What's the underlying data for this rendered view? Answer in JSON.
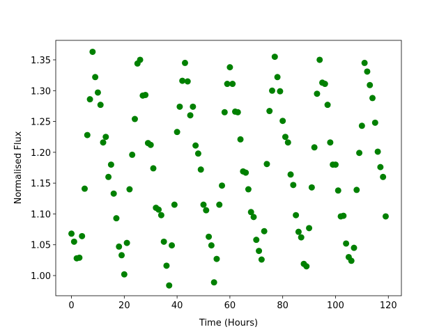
{
  "chart_data": {
    "type": "scatter",
    "x_label": "Time (Hours)",
    "y_label": "Normalised Flux",
    "color": "#008000",
    "x": [
      0,
      1,
      2,
      3,
      4,
      5,
      6,
      7,
      8,
      9,
      10,
      11,
      12,
      13,
      14,
      15,
      16,
      17,
      18,
      19,
      20,
      21,
      22,
      23,
      24,
      25,
      26,
      27,
      28,
      29,
      30,
      31,
      32,
      33,
      34,
      35,
      36,
      37,
      38,
      39,
      40,
      41,
      42,
      43,
      44,
      45,
      46,
      47,
      48,
      49,
      50,
      51,
      52,
      53,
      54,
      55,
      56,
      57,
      58,
      59,
      60,
      61,
      62,
      63,
      64,
      65,
      66,
      67,
      68,
      69,
      70,
      71,
      72,
      73,
      74,
      75,
      76,
      77,
      78,
      79,
      80,
      81,
      82,
      83,
      84,
      85,
      86,
      87,
      88,
      89,
      90,
      91,
      92,
      93,
      94,
      95,
      96,
      97,
      98,
      99,
      100,
      101,
      102,
      103,
      104,
      105,
      106,
      107,
      108,
      109,
      110,
      111,
      112,
      113,
      114,
      115,
      116,
      117,
      118,
      119
    ],
    "values": [
      1.068,
      1.055,
      1.028,
      1.029,
      1.064,
      1.141,
      1.228,
      1.286,
      1.363,
      1.322,
      1.297,
      1.277,
      1.216,
      1.225,
      1.16,
      1.18,
      1.133,
      1.093,
      1.047,
      1.033,
      1.002,
      1.053,
      1.14,
      1.196,
      1.254,
      1.344,
      1.35,
      1.292,
      1.293,
      1.215,
      1.212,
      1.174,
      1.11,
      1.107,
      1.098,
      1.055,
      1.016,
      0.984,
      1.049,
      1.115,
      1.233,
      1.274,
      1.316,
      1.345,
      1.315,
      1.26,
      1.274,
      1.211,
      1.198,
      1.172,
      1.115,
      1.106,
      1.063,
      1.049,
      0.989,
      1.027,
      1.115,
      1.146,
      1.265,
      1.311,
      1.338,
      1.311,
      1.266,
      1.265,
      1.221,
      1.169,
      1.167,
      1.14,
      1.103,
      1.095,
      1.058,
      1.04,
      1.026,
      1.072,
      1.181,
      1.267,
      1.3,
      1.355,
      1.322,
      1.299,
      1.251,
      1.225,
      1.216,
      1.164,
      1.147,
      1.098,
      1.071,
      1.062,
      1.019,
      1.015,
      1.077,
      1.143,
      1.208,
      1.295,
      1.35,
      1.313,
      1.311,
      1.277,
      1.216,
      1.18,
      1.18,
      1.138,
      1.096,
      1.097,
      1.052,
      1.03,
      1.024,
      1.045,
      1.139,
      1.199,
      1.243,
      1.345,
      1.331,
      1.309,
      1.288,
      1.248,
      1.201,
      1.176,
      1.16,
      1.096
    ],
    "xlim": [
      -5.95,
      124.95
    ],
    "ylim": [
      0.9673,
      1.3816
    ],
    "xticks": [
      0,
      20,
      40,
      60,
      80,
      100,
      120
    ],
    "yticks": [
      {
        "value": 1,
        "label": "1.00"
      },
      1.05,
      {
        "value": 1.1,
        "label": "1.10"
      },
      1.15,
      {
        "value": 1.2,
        "label": "1.20"
      },
      1.25,
      {
        "value": 1.3,
        "label": "1.30"
      },
      1.35
    ]
  }
}
